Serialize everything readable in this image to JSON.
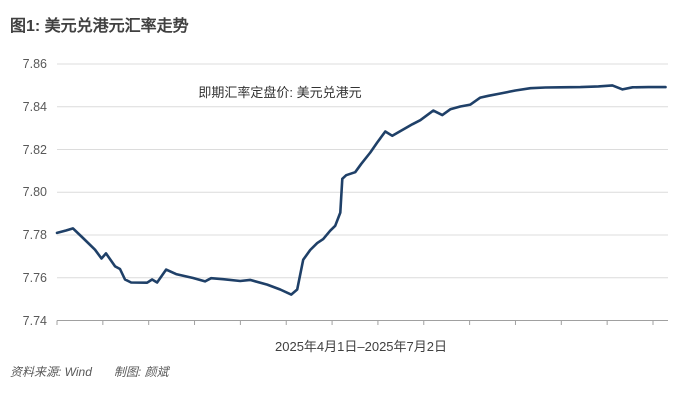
{
  "title": "图1: 美元兑港元汇率走势",
  "annotation": "即期汇率定盘价: 美元兑港元",
  "x_axis_label": "2025年4月1日–2025年7月2日",
  "footer": {
    "source": "资料来源: Wind",
    "credit": "制图: 颜斌"
  },
  "colors": {
    "line": "#1f4068",
    "grid": "#dcdcdc",
    "axis": "#a0a0a0",
    "title_text": "#404040",
    "tick_text": "#595959"
  },
  "chart_data": {
    "type": "line",
    "title": "图1: 美元兑港元汇率走势",
    "series_label": "即期汇率定盘价: 美元兑港元",
    "x_range_label": "2025年4月1日–2025年7月2日",
    "xlabel": "",
    "ylabel": "",
    "ylim": [
      7.74,
      7.86
    ],
    "yticks": [
      7.86,
      7.84,
      7.82,
      7.8,
      7.78,
      7.76,
      7.74
    ],
    "ytick_labels": [
      "7.86",
      "7.84",
      "7.82",
      "7.80",
      "7.78",
      "7.76",
      "7.74"
    ],
    "grid": "horizontal",
    "legend_position": "none",
    "x_tick_count": 14,
    "points": [
      [
        0.0,
        7.781
      ],
      [
        0.0148,
        7.7821
      ],
      [
        0.0263,
        7.7831
      ],
      [
        0.0428,
        7.7786
      ],
      [
        0.0625,
        7.7731
      ],
      [
        0.0732,
        7.769
      ],
      [
        0.0806,
        7.7714
      ],
      [
        0.0954,
        7.7653
      ],
      [
        0.1036,
        7.7641
      ],
      [
        0.1118,
        7.7592
      ],
      [
        0.1217,
        7.7578
      ],
      [
        0.148,
        7.7577
      ],
      [
        0.1563,
        7.7592
      ],
      [
        0.1645,
        7.7578
      ],
      [
        0.1793,
        7.7638
      ],
      [
        0.1957,
        7.7617
      ],
      [
        0.2237,
        7.7599
      ],
      [
        0.2434,
        7.7583
      ],
      [
        0.2533,
        7.7598
      ],
      [
        0.273,
        7.7593
      ],
      [
        0.301,
        7.7585
      ],
      [
        0.3174,
        7.759
      ],
      [
        0.3454,
        7.7568
      ],
      [
        0.3668,
        7.7545
      ],
      [
        0.3849,
        7.7521
      ],
      [
        0.3947,
        7.7545
      ],
      [
        0.4046,
        7.7684
      ],
      [
        0.4161,
        7.773
      ],
      [
        0.4276,
        7.7762
      ],
      [
        0.4375,
        7.7781
      ],
      [
        0.449,
        7.782
      ],
      [
        0.4572,
        7.7843
      ],
      [
        0.4655,
        7.7905
      ],
      [
        0.4688,
        7.8063
      ],
      [
        0.4753,
        7.808
      ],
      [
        0.4901,
        7.8094
      ],
      [
        0.5,
        7.8133
      ],
      [
        0.5148,
        7.8186
      ],
      [
        0.5263,
        7.8233
      ],
      [
        0.5395,
        7.8284
      ],
      [
        0.551,
        7.8264
      ],
      [
        0.5674,
        7.8291
      ],
      [
        0.5839,
        7.8318
      ],
      [
        0.597,
        7.8337
      ],
      [
        0.6184,
        7.8382
      ],
      [
        0.6332,
        7.8361
      ],
      [
        0.6464,
        7.8388
      ],
      [
        0.6628,
        7.8401
      ],
      [
        0.6793,
        7.841
      ],
      [
        0.6957,
        7.8443
      ],
      [
        0.7089,
        7.8451
      ],
      [
        0.7286,
        7.8462
      ],
      [
        0.7533,
        7.8476
      ],
      [
        0.778,
        7.8487
      ],
      [
        0.8026,
        7.849
      ],
      [
        0.8273,
        7.8491
      ],
      [
        0.8602,
        7.8492
      ],
      [
        0.8898,
        7.8495
      ],
      [
        0.9128,
        7.85
      ],
      [
        0.9293,
        7.8481
      ],
      [
        0.9457,
        7.8491
      ],
      [
        0.972,
        7.8492
      ],
      [
        1.0,
        7.8492
      ]
    ]
  }
}
